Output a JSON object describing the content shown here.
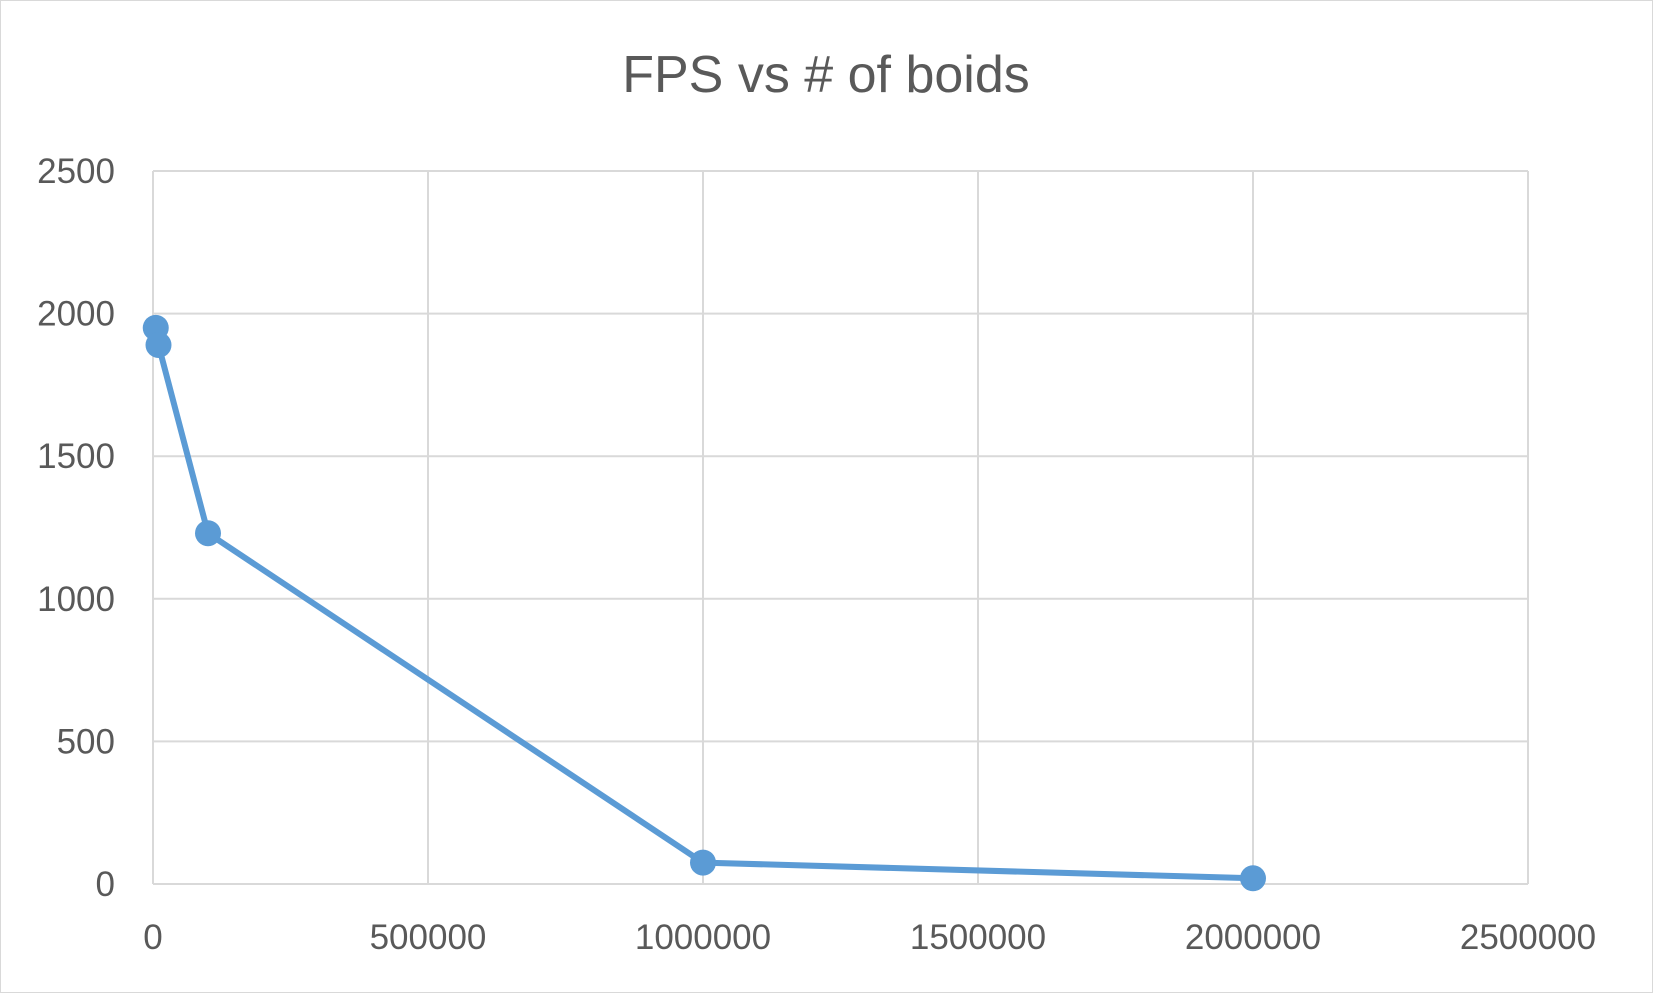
{
  "chart_data": {
    "type": "scatter",
    "title": "FPS vs # of boids",
    "xlabel": "",
    "ylabel": "",
    "xlim": [
      0,
      2500000
    ],
    "ylim": [
      0,
      2500
    ],
    "x_ticks": [
      0,
      500000,
      1000000,
      1500000,
      2000000,
      2500000
    ],
    "y_ticks": [
      0,
      500,
      1000,
      1500,
      2000,
      2500
    ],
    "x_tick_labels": [
      "0",
      "500000",
      "1000000",
      "1500000",
      "2000000",
      "2500000"
    ],
    "y_tick_labels": [
      "0",
      "500",
      "1000",
      "1500",
      "2000",
      "2500"
    ],
    "grid": true,
    "legend": "none",
    "series": [
      {
        "color": "#5b9bd5",
        "points": [
          {
            "x": 5000,
            "y": 1950
          },
          {
            "x": 10000,
            "y": 1890
          },
          {
            "x": 100000,
            "y": 1230
          },
          {
            "x": 1000000,
            "y": 75
          },
          {
            "x": 2000000,
            "y": 20
          }
        ]
      }
    ],
    "colors": {
      "series": "#5b9bd5",
      "grid": "#d9d9d9",
      "text": "#595959",
      "border": "#d9d9d9"
    }
  }
}
